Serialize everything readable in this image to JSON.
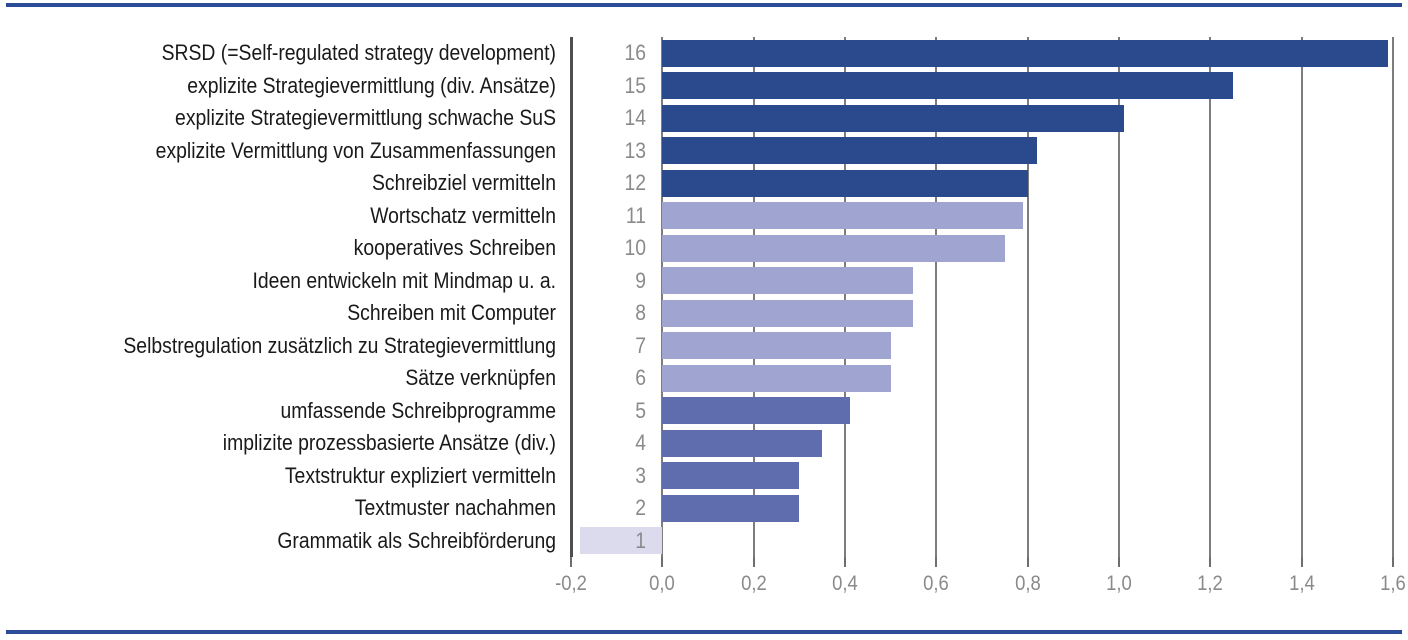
{
  "page": {
    "background": "#ffffff",
    "border_color": "#2d4c97"
  },
  "colors": {
    "bar_dark": "#2b4a8e",
    "bar_light": "#a0a4d1",
    "bar_medium": "#5f6cae",
    "bar_pale": "#dcdbee",
    "gridline": "#7d7d7d",
    "axis_line": "#4f4f4f",
    "row_number_text": "#8a8a8a",
    "tick_label_text": "#8a8a8a",
    "category_label_text": "#1a1a1a"
  },
  "chart_data": {
    "type": "bar",
    "orientation": "horizontal",
    "title": "",
    "xlabel": "",
    "ylabel": "",
    "xlim": [
      -0.2,
      1.6
    ],
    "grid": true,
    "x_ticks": [
      "-0,2",
      "0,0",
      "0,2",
      "0,4",
      "0,6",
      "0,8",
      "1,0",
      "1,2",
      "1,4",
      "1,6"
    ],
    "x_tick_values": [
      -0.2,
      0.0,
      0.2,
      0.4,
      0.6,
      0.8,
      1.0,
      1.2,
      1.4,
      1.6
    ],
    "rows": [
      {
        "rank": "16",
        "label": "SRSD (=Self-regulated strategy development)",
        "value": 1.59,
        "color": "#2b4a8e"
      },
      {
        "rank": "15",
        "label": "explizite Strategievermittlung (div. Ansätze)",
        "value": 1.25,
        "color": "#2b4a8e"
      },
      {
        "rank": "14",
        "label": "explizite Strategievermittlung schwache SuS",
        "value": 1.01,
        "color": "#2b4a8e"
      },
      {
        "rank": "13",
        "label": "explizite Vermittlung von Zusammenfassungen",
        "value": 0.82,
        "color": "#2b4a8e"
      },
      {
        "rank": "12",
        "label": "Schreibziel vermitteln",
        "value": 0.8,
        "color": "#2b4a8e"
      },
      {
        "rank": "11",
        "label": "Wortschatz vermitteln",
        "value": 0.79,
        "color": "#a0a4d1"
      },
      {
        "rank": "10",
        "label": "kooperatives Schreiben",
        "value": 0.75,
        "color": "#a0a4d1"
      },
      {
        "rank": "9",
        "label": "Ideen entwickeln mit Mindmap u. a.",
        "value": 0.55,
        "color": "#a0a4d1"
      },
      {
        "rank": "8",
        "label": "Schreiben mit Computer",
        "value": 0.55,
        "color": "#a0a4d1"
      },
      {
        "rank": "7",
        "label": "Selbstregulation zusätzlich zu Strategievermittlung",
        "value": 0.5,
        "color": "#a0a4d1"
      },
      {
        "rank": "6",
        "label": "Sätze verknüpfen",
        "value": 0.5,
        "color": "#a0a4d1"
      },
      {
        "rank": "5",
        "label": "umfassende Schreibprogramme",
        "value": 0.41,
        "color": "#5f6cae"
      },
      {
        "rank": "4",
        "label": "implizite prozessbasierte Ansätze (div.)",
        "value": 0.35,
        "color": "#5f6cae"
      },
      {
        "rank": "3",
        "label": "Textstruktur expliziert vermitteln",
        "value": 0.3,
        "color": "#5f6cae"
      },
      {
        "rank": "2",
        "label": "Textmuster nachahmen",
        "value": 0.3,
        "color": "#5f6cae"
      },
      {
        "rank": "1",
        "label": "Grammatik als Schreibförderung",
        "value": -0.18,
        "color": "#dcdbee"
      }
    ]
  }
}
